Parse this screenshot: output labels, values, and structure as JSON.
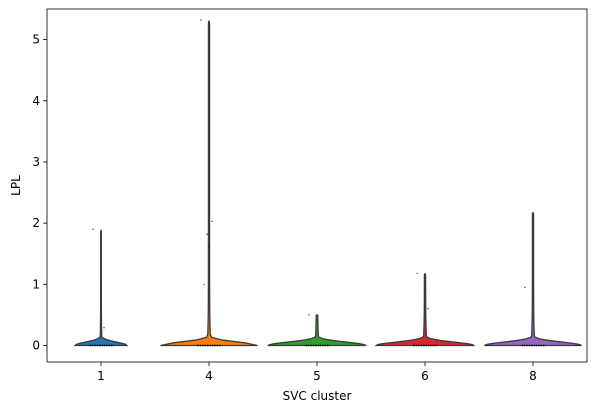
{
  "chart_data": {
    "type": "violin",
    "xlabel": "SVC cluster",
    "ylabel": "LPL",
    "ylim": [
      -0.27,
      5.5
    ],
    "yticks": [
      0,
      1,
      2,
      3,
      4,
      5
    ],
    "grid": false,
    "categories": [
      "1",
      "4",
      "5",
      "6",
      "8"
    ],
    "series": [
      {
        "category": "1",
        "color": "#1f77b4",
        "max": 1.88,
        "peak_density_half_width": 0.24,
        "outliers": [
          1.9,
          0.29
        ]
      },
      {
        "category": "4",
        "color": "#ff7f0e",
        "max": 5.3,
        "peak_density_half_width": 0.45,
        "outliers": [
          5.32,
          2.03,
          1.82,
          1.62,
          1.0
        ]
      },
      {
        "category": "5",
        "color": "#2ca02c",
        "max": 0.5,
        "peak_density_half_width": 0.45,
        "outliers": [
          0.5
        ]
      },
      {
        "category": "6",
        "color": "#d62728",
        "max": 1.17,
        "peak_density_half_width": 0.45,
        "outliers": [
          1.18,
          0.6
        ]
      },
      {
        "category": "8",
        "color": "#9467bd",
        "max": 2.17,
        "peak_density_half_width": 0.45,
        "outliers": [
          0.95
        ]
      }
    ]
  }
}
